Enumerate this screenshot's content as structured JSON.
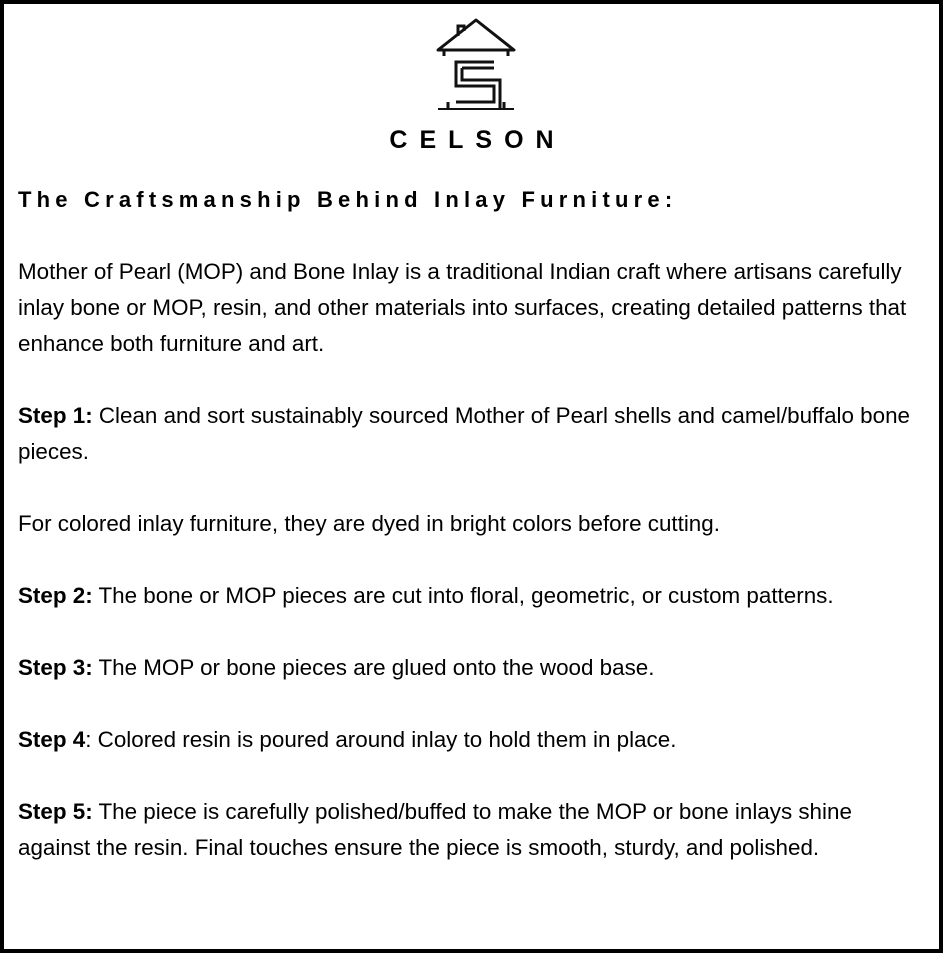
{
  "brand": {
    "name": "CELSON",
    "logo_icon": "house-c-logo-icon"
  },
  "title": "The Craftsmanship Behind Inlay Furniture:",
  "intro": "Mother of Pearl (MOP) and Bone Inlay is a traditional Indian craft where artisans carefully inlay bone or MOP, resin, and other materials into surfaces, creating detailed patterns that enhance both furniture and art.",
  "steps": [
    {
      "label": "Step 1:",
      "text": " Clean and sort sustainably sourced Mother of Pearl shells and camel/buffalo bone pieces."
    },
    {
      "label": "",
      "text": "For colored inlay furniture, they are dyed in bright colors before cutting."
    },
    {
      "label": "Step 2:",
      "text": " The bone or MOP pieces are cut into floral, geometric, or custom patterns."
    },
    {
      "label": "Step 3:",
      "text": " The MOP or bone pieces are glued onto the wood base."
    },
    {
      "label": "Step 4",
      "text": ": Colored resin is poured around inlay to hold them in place."
    },
    {
      "label": "Step 5:",
      "text": " The piece is carefully polished/buffed to make the MOP or bone inlays shine against the resin. Final touches ensure the piece is smooth, sturdy, and polished."
    }
  ]
}
